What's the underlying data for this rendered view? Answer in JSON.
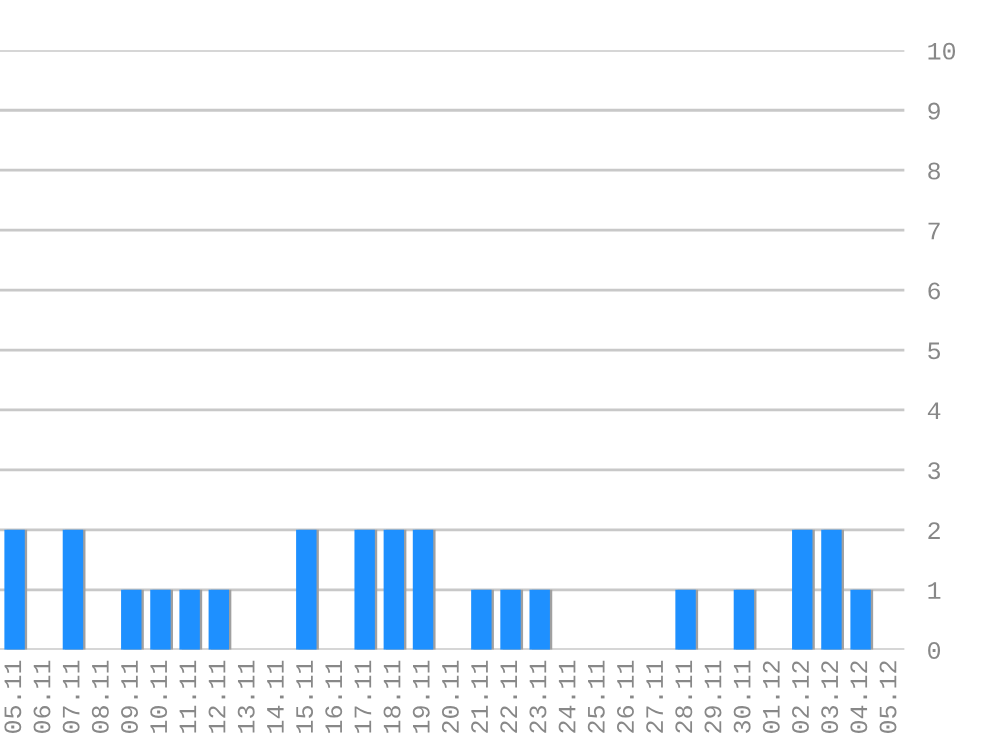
{
  "chart_data": {
    "type": "bar",
    "categories": [
      "05.11",
      "06.11",
      "07.11",
      "08.11",
      "09.11",
      "10.11",
      "11.11",
      "12.11",
      "13.11",
      "14.11",
      "15.11",
      "16.11",
      "17.11",
      "18.11",
      "19.11",
      "20.11",
      "21.11",
      "22.11",
      "23.11",
      "24.11",
      "25.11",
      "26.11",
      "27.11",
      "28.11",
      "29.11",
      "30.11",
      "01.12",
      "02.12",
      "03.12",
      "04.12",
      "05.12"
    ],
    "values": [
      2,
      0,
      2,
      0,
      1,
      1,
      1,
      1,
      0,
      0,
      2,
      0,
      2,
      2,
      2,
      0,
      1,
      1,
      1,
      0,
      0,
      0,
      0,
      1,
      0,
      1,
      0,
      2,
      2,
      1,
      0
    ],
    "color": "#1e90ff",
    "ylim": [
      0,
      10
    ],
    "yticks": [
      0,
      1,
      2,
      3,
      4,
      5,
      6,
      7,
      8,
      9,
      10
    ],
    "grid": "y"
  }
}
